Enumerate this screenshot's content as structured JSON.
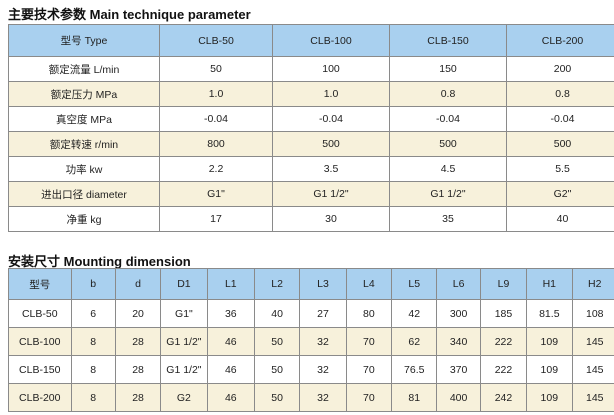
{
  "main_params": {
    "title": "主要技术参数 Main technique parameter",
    "headers": [
      "型号 Type",
      "CLB-50",
      "CLB-100",
      "CLB-150",
      "CLB-200"
    ],
    "rows": [
      [
        "额定流量 L/min",
        "50",
        "100",
        "150",
        "200"
      ],
      [
        "额定压力 MPa",
        "1.0",
        "1.0",
        "0.8",
        "0.8"
      ],
      [
        "真空度 MPa",
        "-0.04",
        "-0.04",
        "-0.04",
        "-0.04"
      ],
      [
        "额定转速 r/min",
        "800",
        "500",
        "500",
        "500"
      ],
      [
        "功率 kw",
        "2.2",
        "3.5",
        "4.5",
        "5.5"
      ],
      [
        "进出口径 diameter",
        "G1\"",
        "G1 1/2\"",
        "G1 1/2\"",
        "G2\""
      ],
      [
        "净重 kg",
        "17",
        "30",
        "35",
        "40"
      ]
    ]
  },
  "mounting": {
    "title": "安装尺寸 Mounting dimension",
    "headers": [
      "型号",
      "b",
      "d",
      "D1",
      "L1",
      "L2",
      "L3",
      "L4",
      "L5",
      "L6",
      "L9",
      "H1",
      "H2"
    ],
    "rows": [
      [
        "CLB-50",
        "6",
        "20",
        "G1\"",
        "36",
        "40",
        "27",
        "80",
        "42",
        "300",
        "185",
        "81.5",
        "108"
      ],
      [
        "CLB-100",
        "8",
        "28",
        "G1 1/2\"",
        "46",
        "50",
        "32",
        "70",
        "62",
        "340",
        "222",
        "109",
        "145"
      ],
      [
        "CLB-150",
        "8",
        "28",
        "G1 1/2\"",
        "46",
        "50",
        "32",
        "70",
        "76.5",
        "370",
        "222",
        "109",
        "145"
      ],
      [
        "CLB-200",
        "8",
        "28",
        "G2",
        "46",
        "50",
        "32",
        "70",
        "81",
        "400",
        "242",
        "109",
        "145"
      ]
    ]
  },
  "colors": {
    "header": "#a9d0ef",
    "alt_row": "#f7f1db",
    "border": "#8a8a8a"
  }
}
